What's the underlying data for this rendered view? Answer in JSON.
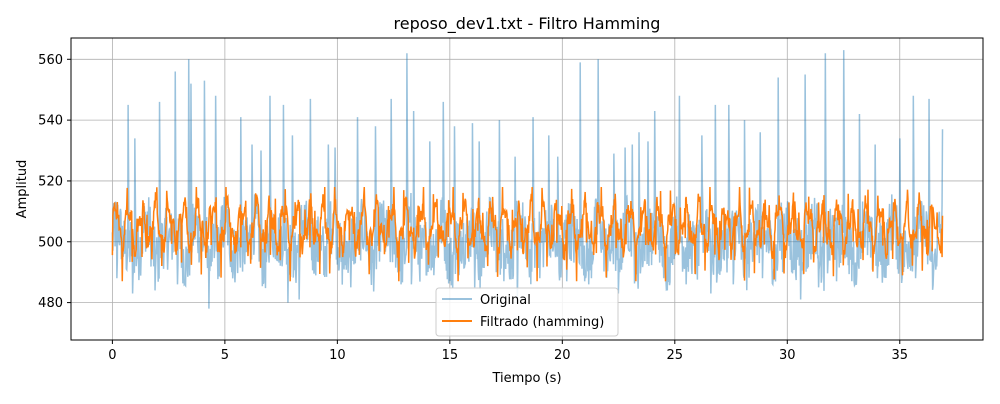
{
  "chart_data": {
    "type": "line",
    "title": "reposo_dev1.txt - Filtro Hamming",
    "xlabel": "Tiempo (s)",
    "ylabel": "Amplitud",
    "xlim": [
      -1.84,
      38.7
    ],
    "ylim": [
      467.7,
      567
    ],
    "xticks": [
      0,
      5,
      10,
      15,
      20,
      25,
      30,
      35
    ],
    "yticks": [
      480,
      500,
      520,
      540,
      560
    ],
    "grid": true,
    "legend_position": "bottom-center",
    "x_range": [
      0,
      36.9
    ],
    "colors": {
      "Original": "#1f77b4",
      "Filtrado (hamming)": "#ff7f0e"
    },
    "series": [
      {
        "name": "Original",
        "note": "raw signal ~500 baseline with spikes; peaks listed as [time, value]",
        "baseline": 500,
        "noise_range": [
          485,
          520
        ],
        "peaks": [
          [
            0.7,
            545
          ],
          [
            1.0,
            534
          ],
          [
            2.1,
            546
          ],
          [
            2.8,
            556
          ],
          [
            3.4,
            560
          ],
          [
            3.5,
            552
          ],
          [
            4.1,
            553
          ],
          [
            4.6,
            548
          ],
          [
            5.7,
            541
          ],
          [
            6.2,
            532
          ],
          [
            6.6,
            530
          ],
          [
            7.0,
            548
          ],
          [
            7.6,
            545
          ],
          [
            8.0,
            535
          ],
          [
            8.8,
            547
          ],
          [
            9.6,
            532
          ],
          [
            9.9,
            531
          ],
          [
            10.9,
            541
          ],
          [
            11.7,
            538
          ],
          [
            12.4,
            547
          ],
          [
            13.1,
            562
          ],
          [
            13.4,
            543
          ],
          [
            14.1,
            533
          ],
          [
            14.7,
            546
          ],
          [
            15.2,
            538
          ],
          [
            16.0,
            539
          ],
          [
            16.3,
            533
          ],
          [
            17.2,
            540
          ],
          [
            17.9,
            528
          ],
          [
            18.7,
            541
          ],
          [
            19.4,
            535
          ],
          [
            19.8,
            528
          ],
          [
            20.8,
            559
          ],
          [
            21.6,
            560
          ],
          [
            22.3,
            529
          ],
          [
            22.8,
            531
          ],
          [
            23.1,
            532
          ],
          [
            23.4,
            536
          ],
          [
            23.8,
            533
          ],
          [
            24.1,
            543
          ],
          [
            25.2,
            548
          ],
          [
            26.2,
            535
          ],
          [
            26.8,
            545
          ],
          [
            27.4,
            545
          ],
          [
            28.1,
            540
          ],
          [
            28.8,
            536
          ],
          [
            29.6,
            554
          ],
          [
            30.8,
            555
          ],
          [
            31.7,
            562
          ],
          [
            32.5,
            563
          ],
          [
            33.2,
            542
          ],
          [
            33.9,
            532
          ],
          [
            35.0,
            534
          ],
          [
            35.6,
            548
          ],
          [
            36.3,
            547
          ],
          [
            36.9,
            537
          ]
        ],
        "troughs": [
          [
            0.2,
            488
          ],
          [
            0.9,
            483
          ],
          [
            1.9,
            484
          ],
          [
            2.9,
            486
          ],
          [
            4.3,
            478
          ],
          [
            5.3,
            490
          ],
          [
            6.6,
            484
          ],
          [
            7.0,
            472
          ],
          [
            7.8,
            480
          ],
          [
            8.3,
            481
          ],
          [
            9.4,
            489
          ],
          [
            10.6,
            485
          ],
          [
            11.7,
            485
          ],
          [
            12.4,
            481
          ],
          [
            13.3,
            486
          ],
          [
            14.1,
            485
          ],
          [
            15.4,
            489
          ],
          [
            16.1,
            485
          ],
          [
            17.4,
            487
          ],
          [
            18.0,
            480
          ],
          [
            19.0,
            488
          ],
          [
            19.8,
            485
          ],
          [
            20.2,
            487
          ],
          [
            21.0,
            487
          ],
          [
            22.5,
            483
          ],
          [
            23.4,
            486
          ],
          [
            24.5,
            488
          ],
          [
            25.5,
            486
          ],
          [
            26.6,
            483
          ],
          [
            27.6,
            486
          ],
          [
            28.9,
            488
          ],
          [
            29.8,
            490
          ],
          [
            30.6,
            481
          ],
          [
            31.4,
            485
          ],
          [
            32.2,
            487
          ],
          [
            33.0,
            486
          ],
          [
            34.0,
            488
          ],
          [
            35.0,
            484
          ],
          [
            35.7,
            488
          ],
          [
            36.5,
            490
          ]
        ]
      },
      {
        "name": "Filtrado (hamming)",
        "note": "smoothed signal oscillating about ~505",
        "baseline": 505,
        "range": [
          487,
          518
        ]
      }
    ]
  }
}
